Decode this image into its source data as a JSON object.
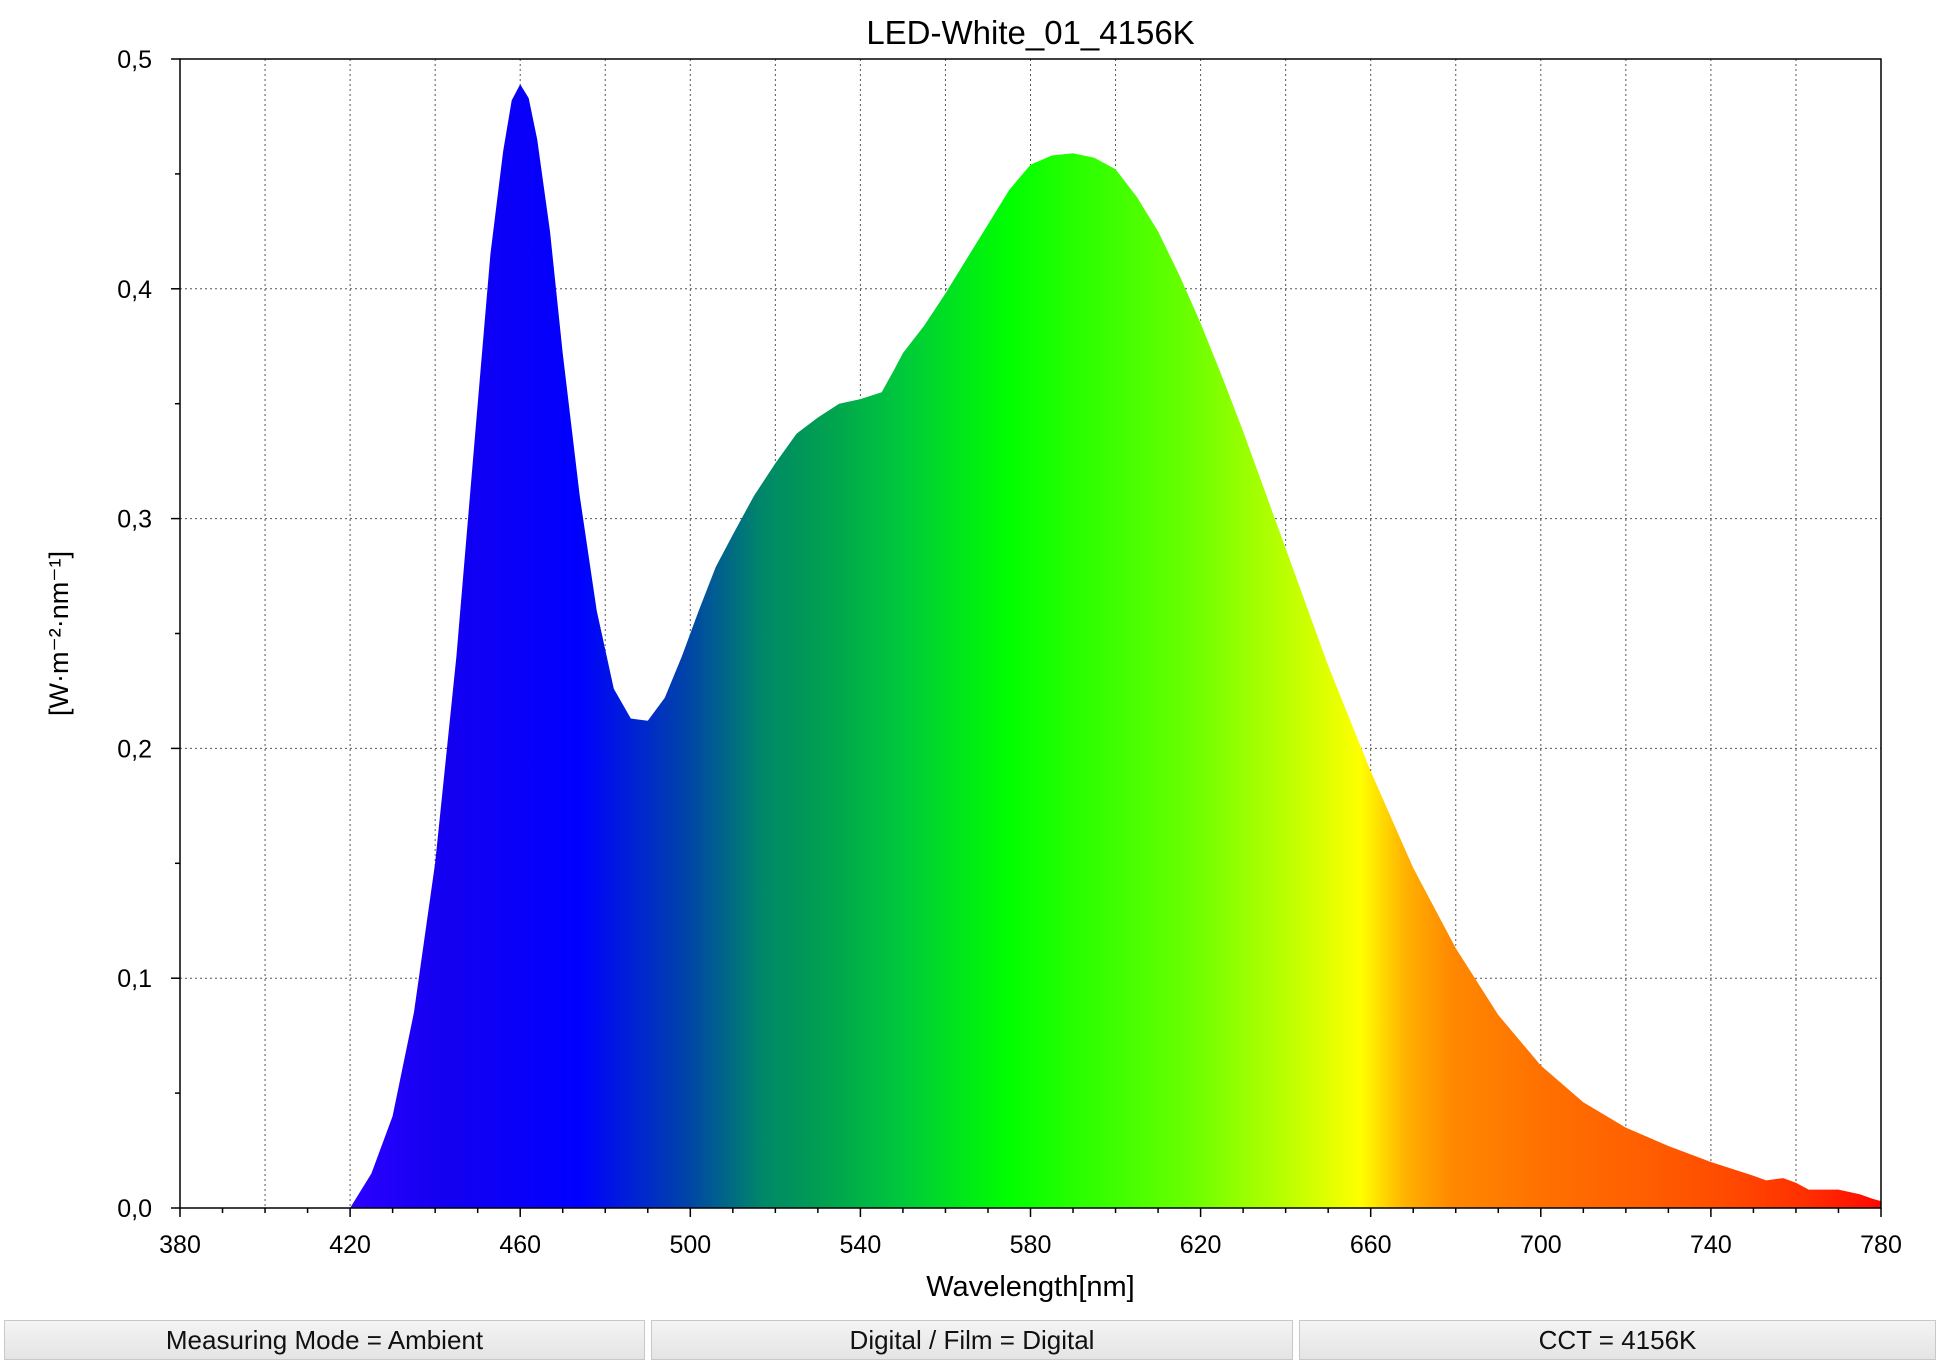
{
  "chart_data": {
    "type": "area",
    "title": "LED-White_01_4156K",
    "xlabel": "Wavelength[nm]",
    "ylabel": "[W·m⁻²·nm⁻¹]",
    "xlim": [
      380,
      780
    ],
    "ylim": [
      0,
      0.5
    ],
    "x_ticks": [
      380,
      420,
      460,
      500,
      540,
      580,
      620,
      660,
      700,
      740,
      780
    ],
    "x_tick_labels": [
      "380",
      "420",
      "460",
      "500",
      "540",
      "580",
      "620",
      "660",
      "700",
      "740",
      "780"
    ],
    "y_ticks": [
      0,
      0.1,
      0.2,
      0.3,
      0.4,
      0.5
    ],
    "y_tick_labels": [
      "0,0",
      "0,1",
      "0,2",
      "0,3",
      "0,4",
      "0,5"
    ],
    "grid": true,
    "series": [
      {
        "x": [
          420,
          425,
          430,
          435,
          440,
          445,
          450,
          453,
          456,
          458,
          460,
          462,
          464,
          467,
          470,
          474,
          478,
          482,
          486,
          490,
          494,
          498,
          502,
          506,
          510,
          515,
          520,
          525,
          530,
          535,
          540,
          545,
          548,
          550,
          555,
          560,
          565,
          570,
          575,
          580,
          585,
          590,
          595,
          600,
          605,
          610,
          615,
          620,
          625,
          630,
          640,
          650,
          660,
          670,
          680,
          690,
          700,
          710,
          720,
          730,
          740,
          745,
          750,
          753,
          757,
          760,
          763,
          766,
          770,
          775,
          778,
          780
        ],
        "y": [
          0.0,
          0.015,
          0.04,
          0.085,
          0.15,
          0.24,
          0.35,
          0.415,
          0.46,
          0.482,
          0.489,
          0.483,
          0.465,
          0.425,
          0.372,
          0.31,
          0.26,
          0.226,
          0.213,
          0.212,
          0.222,
          0.24,
          0.26,
          0.279,
          0.293,
          0.31,
          0.324,
          0.337,
          0.344,
          0.35,
          0.352,
          0.355,
          0.365,
          0.372,
          0.384,
          0.398,
          0.413,
          0.428,
          0.443,
          0.454,
          0.458,
          0.459,
          0.457,
          0.452,
          0.44,
          0.425,
          0.406,
          0.385,
          0.362,
          0.338,
          0.287,
          0.236,
          0.19,
          0.148,
          0.113,
          0.084,
          0.062,
          0.046,
          0.035,
          0.027,
          0.02,
          0.017,
          0.014,
          0.012,
          0.013,
          0.011,
          0.008,
          0.008,
          0.008,
          0.006,
          0.004,
          0.003
        ]
      }
    ]
  },
  "status_bar": {
    "measuring_mode": "Measuring Mode = Ambient",
    "digital_film": "Digital / Film = Digital",
    "cct": "CCT = 4156K"
  },
  "colors": {
    "spectrum": [
      "#2a00ff",
      "#1400f0",
      "#0000ff",
      "#0044a8",
      "#008868",
      "#00a050",
      "#00c83c",
      "#00ff00",
      "#6cff00",
      "#d4ff00",
      "#ffff00",
      "#ffb000",
      "#ff8800",
      "#ff7000",
      "#ff6000",
      "#ff4a00",
      "#ff3000",
      "#ff0800"
    ],
    "grid": "#555555"
  }
}
